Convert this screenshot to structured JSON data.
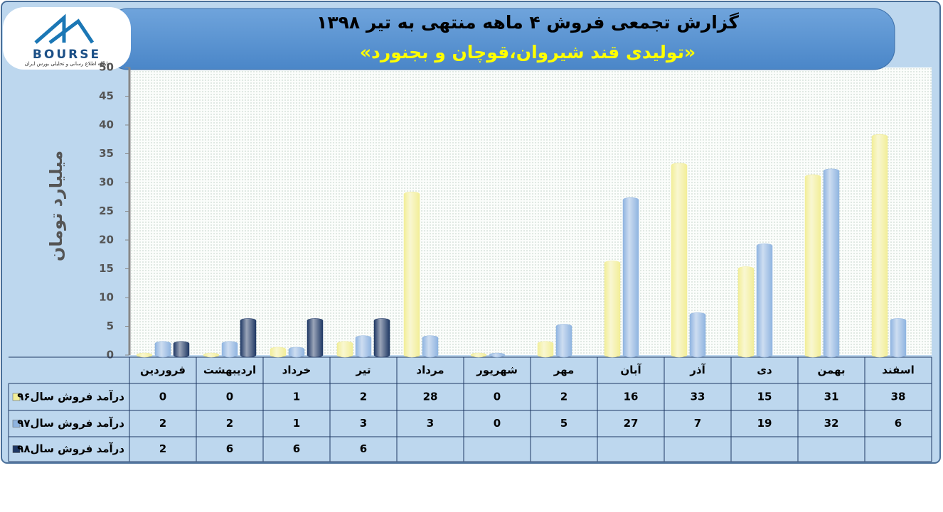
{
  "logo": {
    "name": "BOURSE",
    "tagline": "پایگاه اطلاع رسانی و تحلیلی بورس ایران"
  },
  "chart_data": {
    "type": "bar",
    "title": "گزارش تجمعی فروش ۴ ماهه منتهی به تیر ۱۳۹۸",
    "subtitle": "«تولیدی قند شیروان،قوچان و بجنورد»",
    "y_label": "میلیارد تومان",
    "categories": [
      "فروردین",
      "اردیبهشت",
      "خرداد",
      "تیر",
      "مرداد",
      "شهریور",
      "مهر",
      "آبان",
      "آذر",
      "دی",
      "بهمن",
      "اسفند"
    ],
    "series": [
      {
        "name": "درآمد فروش سال۹۶",
        "color": "#f2ee98",
        "values": [
          0,
          0,
          1,
          2,
          28,
          0,
          2,
          16,
          33,
          15,
          31,
          38
        ]
      },
      {
        "name": "درآمد فروش سال۹۷",
        "color": "#8fb4e0",
        "values": [
          2,
          2,
          1,
          3,
          3,
          0,
          5,
          27,
          7,
          19,
          32,
          6
        ]
      },
      {
        "name": "درآمد فروش سال۹۸",
        "color": "#1f3864",
        "values": [
          2,
          6,
          6,
          6,
          null,
          null,
          null,
          null,
          null,
          null,
          null,
          null
        ]
      }
    ],
    "ylim": [
      0,
      50
    ],
    "yticks": [
      0,
      5,
      10,
      15,
      20,
      25,
      30,
      35,
      40,
      45,
      50
    ],
    "grid": false
  }
}
